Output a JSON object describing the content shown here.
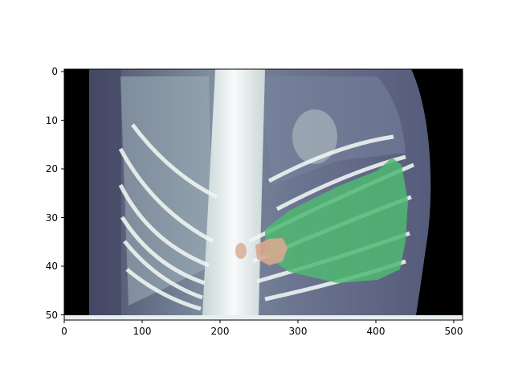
{
  "image": {
    "description_tag": "ct-scan-coronal-slice-with-segmentation-overlay",
    "extent": {
      "x": [
        0,
        512
      ],
      "y": [
        51.5,
        -0.5
      ]
    },
    "colors": {
      "background": "#000000",
      "body_tissue": "#5e6482",
      "bone": "#eef4f2",
      "soft_tissue_light": "#9fb0b8",
      "segmentation_green": "#4fb872",
      "segmentation_tan": "#d8a98f"
    }
  },
  "axes": {
    "x_ticks": [
      {
        "value": 0,
        "label": "0"
      },
      {
        "value": 100,
        "label": "100"
      },
      {
        "value": 200,
        "label": "200"
      },
      {
        "value": 300,
        "label": "300"
      },
      {
        "value": 400,
        "label": "400"
      },
      {
        "value": 500,
        "label": "500"
      }
    ],
    "y_ticks": [
      {
        "value": 0,
        "label": "0"
      },
      {
        "value": 10,
        "label": "10"
      },
      {
        "value": 20,
        "label": "20"
      },
      {
        "value": 30,
        "label": "30"
      },
      {
        "value": 40,
        "label": "40"
      },
      {
        "value": 50,
        "label": "50"
      }
    ]
  }
}
